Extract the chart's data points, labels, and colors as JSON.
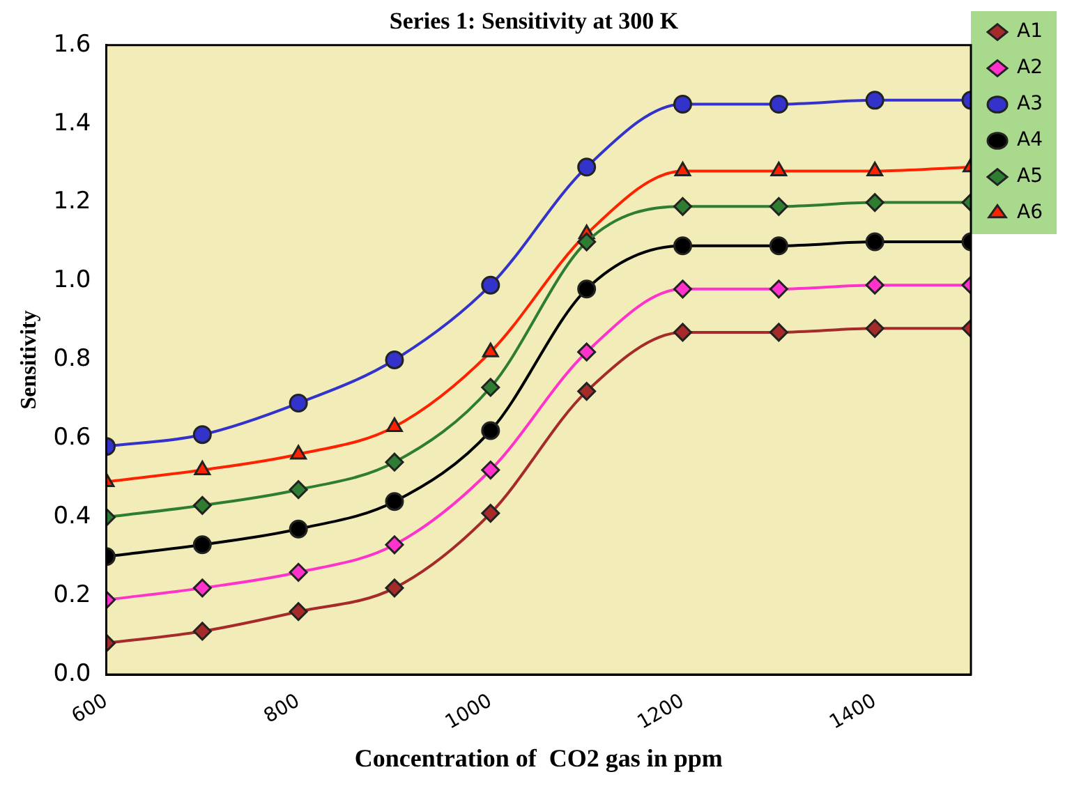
{
  "chart_data": {
    "type": "line",
    "title": "Series 1: Sensitivity at 300 K",
    "xlabel": "Concentration of  CO2 gas in ppm",
    "ylabel": "Sensitivity",
    "x": [
      600,
      700,
      800,
      900,
      1000,
      1100,
      1200,
      1300,
      1400,
      1500
    ],
    "xlim": [
      600,
      1500
    ],
    "xticks": [
      600,
      800,
      1000,
      1200,
      1400
    ],
    "ylim": [
      0,
      1.6
    ],
    "yticks": [
      {
        "value": 0,
        "label": "0.0"
      },
      {
        "value": 0.2,
        "label": "0.2"
      },
      {
        "value": 0.4,
        "label": "0.4"
      },
      {
        "value": 0.6,
        "label": "0.6"
      },
      {
        "value": 0.8,
        "label": "0.8"
      },
      {
        "value": 1.0,
        "label": "1.0"
      },
      {
        "value": 1.2,
        "label": "1.2"
      },
      {
        "value": 1.4,
        "label": "1.4"
      },
      {
        "value": 1.6,
        "label": "1.6"
      }
    ],
    "grid": false,
    "legend": "right",
    "line_style": "solid",
    "series": [
      {
        "name": "A1",
        "color": "#a52a2a",
        "marker": "diamond",
        "values": [
          0.08,
          0.11,
          0.16,
          0.22,
          0.41,
          0.72,
          0.87,
          0.87,
          0.88,
          0.88
        ]
      },
      {
        "name": "A2",
        "color": "#ff33cc",
        "marker": "diamond",
        "values": [
          0.19,
          0.22,
          0.26,
          0.33,
          0.52,
          0.82,
          0.98,
          0.98,
          0.99,
          0.99
        ]
      },
      {
        "name": "A3",
        "color": "#3333cc",
        "marker": "circle",
        "values": [
          0.58,
          0.61,
          0.69,
          0.8,
          0.99,
          1.29,
          1.45,
          1.45,
          1.46,
          1.46
        ]
      },
      {
        "name": "A4",
        "color": "#000000",
        "marker": "circle",
        "values": [
          0.3,
          0.33,
          0.37,
          0.44,
          0.62,
          0.98,
          1.09,
          1.09,
          1.1,
          1.1
        ]
      },
      {
        "name": "A5",
        "color": "#2e7d32",
        "marker": "diamond",
        "values": [
          0.4,
          0.43,
          0.47,
          0.54,
          0.73,
          1.1,
          1.19,
          1.19,
          1.2,
          1.2
        ]
      },
      {
        "name": "A6",
        "color": "#ff2200",
        "marker": "triangle",
        "values": [
          0.49,
          0.52,
          0.56,
          0.63,
          0.82,
          1.12,
          1.28,
          1.28,
          1.28,
          1.29
        ]
      }
    ]
  }
}
